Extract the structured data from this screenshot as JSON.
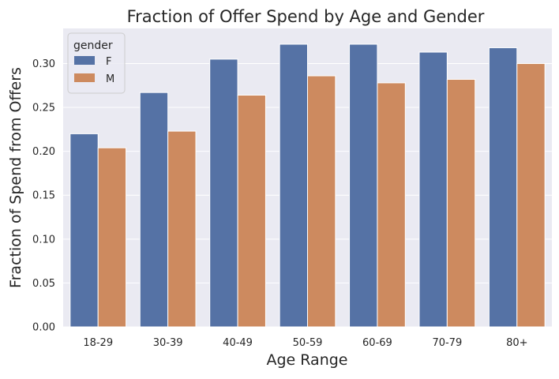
{
  "chart_data": {
    "type": "bar",
    "title": "Fraction of Offer Spend by Age and Gender",
    "xlabel": "Age Range",
    "ylabel": "Fraction of Spend from Offers",
    "categories": [
      "18-29",
      "30-39",
      "40-49",
      "50-59",
      "60-69",
      "70-79",
      "80+"
    ],
    "series": [
      {
        "name": "F",
        "color": "#5572a5",
        "values": [
          0.22,
          0.267,
          0.305,
          0.322,
          0.322,
          0.313,
          0.318
        ]
      },
      {
        "name": "M",
        "color": "#cd8a5f",
        "values": [
          0.204,
          0.223,
          0.264,
          0.286,
          0.278,
          0.282,
          0.3
        ]
      }
    ],
    "ylim": [
      0,
      0.34
    ],
    "yticks": [
      0.0,
      0.05,
      0.1,
      0.15,
      0.2,
      0.25,
      0.3
    ],
    "ytick_labels": [
      "0.00",
      "0.05",
      "0.10",
      "0.15",
      "0.20",
      "0.25",
      "0.30"
    ],
    "legend": {
      "title": "gender",
      "position": "top-left"
    },
    "grid": true,
    "background_color": "#eaeaf2"
  }
}
